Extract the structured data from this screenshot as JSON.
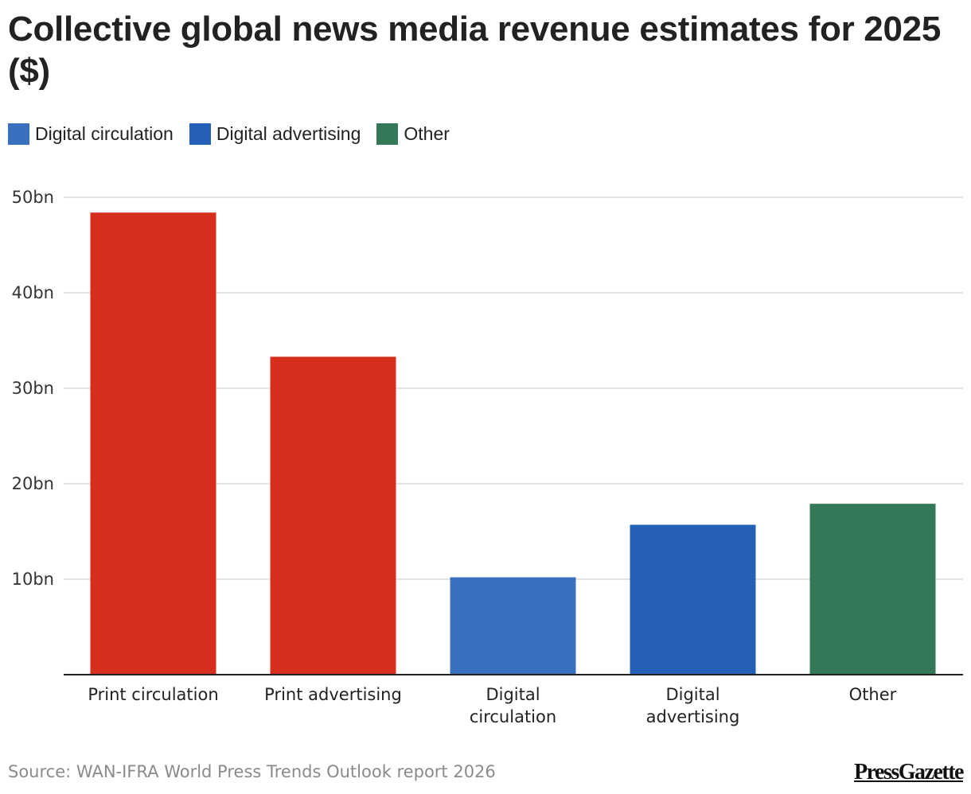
{
  "chart_data": {
    "type": "bar",
    "title": "Collective global news media revenue estimates for 2025 ($)",
    "categories": [
      "Print circulation",
      "Print advertising",
      "Digital circulation",
      "Digital advertising",
      "Other"
    ],
    "category_label_lines": [
      [
        "Print circulation"
      ],
      [
        "Print advertising"
      ],
      [
        "Digital",
        "circulation"
      ],
      [
        "Digital",
        "advertising"
      ],
      [
        "Other"
      ]
    ],
    "values": [
      48.4,
      33.3,
      10.2,
      15.7,
      17.9
    ],
    "unit": "bn",
    "bar_colors": [
      "#d82e1d",
      "#d82e1d",
      "#3a70be",
      "#2360b6",
      "#347957"
    ],
    "xlabel": "",
    "ylabel": "",
    "ylim": [
      0,
      50
    ],
    "yticks": [
      10,
      20,
      30,
      40,
      50
    ],
    "ytick_labels": [
      "10bn",
      "20bn",
      "30bn",
      "40bn",
      "50bn"
    ],
    "grid": true,
    "legend": {
      "position": "top-left",
      "entries": [
        {
          "label": "Digital circulation",
          "color": "#3a70be"
        },
        {
          "label": "Digital advertising",
          "color": "#2360b6"
        },
        {
          "label": "Other",
          "color": "#347957"
        }
      ]
    },
    "source": "Source: WAN-IFRA World Press Trends Outlook report 2026"
  },
  "footer": {
    "source": "Source: WAN-IFRA World Press Trends Outlook report 2026",
    "brand": "PressGazette"
  }
}
